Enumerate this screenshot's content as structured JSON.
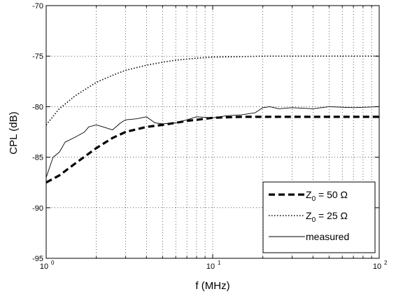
{
  "chart_data": {
    "type": "line",
    "xscale": "log",
    "xlabel": "f (MHz)",
    "ylabel": "CPL (dB)",
    "xlim": [
      1,
      100
    ],
    "ylim": [
      -95,
      -70
    ],
    "grid": true,
    "legend_position": "bottom-right",
    "x_tick_labels": [
      {
        "base": "10",
        "exp": "0"
      },
      {
        "base": "10",
        "exp": "1"
      },
      {
        "base": "10",
        "exp": "2"
      }
    ],
    "y_tick_labels": [
      "-70",
      "-75",
      "-80",
      "-85",
      "-90",
      "-95"
    ],
    "series": [
      {
        "name": "Z0 = 50 Ω",
        "legend": {
          "main": "Z",
          "sub": "0",
          "rest": " = 50 Ω"
        },
        "style": "dashed-thick",
        "color": "#000000",
        "x": [
          1,
          1.2,
          1.5,
          2,
          2.5,
          3,
          4,
          5,
          6,
          7,
          8,
          10,
          15,
          20,
          30,
          50,
          70,
          100
        ],
        "y": [
          -87.5,
          -86.8,
          -85.6,
          -84.1,
          -83.1,
          -82.5,
          -82.0,
          -81.8,
          -81.6,
          -81.4,
          -81.3,
          -81.1,
          -81.0,
          -81.0,
          -81.0,
          -81.0,
          -81.0,
          -81.0
        ]
      },
      {
        "name": "Z0 = 25 Ω",
        "legend": {
          "main": "Z",
          "sub": "0",
          "rest": " = 25 Ω"
        },
        "style": "dotted",
        "color": "#000000",
        "x": [
          1,
          1.2,
          1.5,
          2,
          2.5,
          3,
          4,
          5,
          6,
          8,
          10,
          15,
          20,
          30,
          50,
          100
        ],
        "y": [
          -81.8,
          -80.2,
          -78.9,
          -77.6,
          -76.9,
          -76.4,
          -75.9,
          -75.6,
          -75.4,
          -75.2,
          -75.1,
          -75.05,
          -75.0,
          -75.0,
          -75.0,
          -75.0
        ]
      },
      {
        "name": "measured",
        "legend": {
          "main": "measured",
          "sub": "",
          "rest": ""
        },
        "style": "solid-thin",
        "color": "#000000",
        "x": [
          1,
          1.1,
          1.2,
          1.3,
          1.5,
          1.7,
          1.8,
          2,
          2.2,
          2.5,
          2.8,
          3,
          3.5,
          4,
          4.5,
          5,
          6,
          7,
          8,
          10,
          12,
          15,
          18,
          20,
          22,
          25,
          30,
          40,
          50,
          70,
          100
        ],
        "y": [
          -87.0,
          -85.0,
          -84.5,
          -83.5,
          -83.0,
          -82.5,
          -82.0,
          -81.8,
          -82.0,
          -82.3,
          -81.6,
          -81.3,
          -81.2,
          -81.0,
          -81.6,
          -81.7,
          -81.6,
          -81.3,
          -81.0,
          -81.1,
          -80.9,
          -80.8,
          -80.6,
          -80.1,
          -80.0,
          -80.2,
          -80.1,
          -80.2,
          -80.0,
          -80.1,
          -80.0
        ]
      }
    ]
  }
}
